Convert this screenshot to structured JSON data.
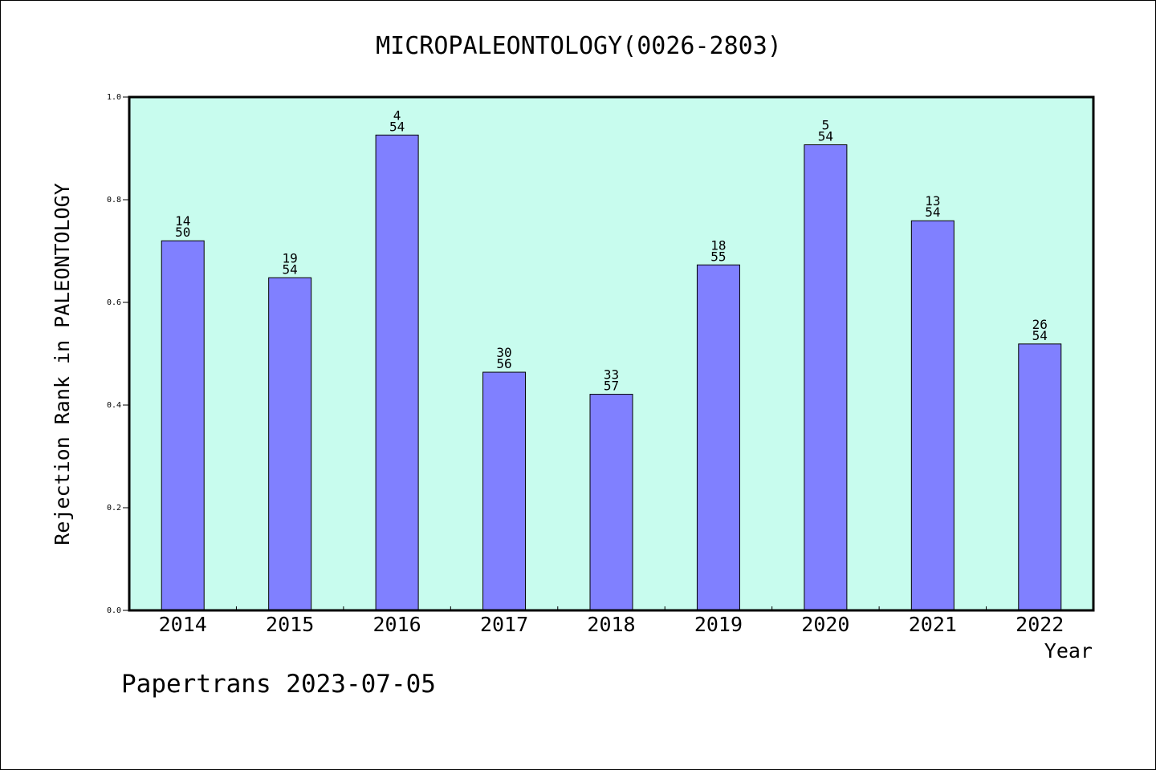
{
  "chart_data": {
    "type": "bar",
    "title": "MICROPALEONTOLOGY(0026-2803)",
    "xlabel": "Year",
    "ylabel": "Rejection Rank in PALEONTOLOGY",
    "categories": [
      "2014",
      "2015",
      "2016",
      "2017",
      "2018",
      "2019",
      "2020",
      "2021",
      "2022"
    ],
    "values": [
      0.72,
      0.648,
      0.926,
      0.464,
      0.421,
      0.673,
      0.907,
      0.759,
      0.519
    ],
    "labels_top": [
      "14",
      "19",
      "4",
      "30",
      "33",
      "18",
      "5",
      "13",
      "26"
    ],
    "labels_bottom": [
      "50",
      "54",
      "54",
      "56",
      "57",
      "55",
      "54",
      "54",
      "54"
    ],
    "ylim": [
      0,
      1.0
    ],
    "yticks": [
      "0.0",
      "0.2",
      "0.4",
      "0.6",
      "0.8",
      "1.0"
    ],
    "grid": false,
    "legend": "none",
    "colors": {
      "plot_background": "#c8fcee",
      "bar_fill": "#8080ff",
      "bar_stroke": "#000000",
      "axis": "#000000"
    }
  },
  "footer": {
    "text": "Papertrans 2023-07-05"
  }
}
